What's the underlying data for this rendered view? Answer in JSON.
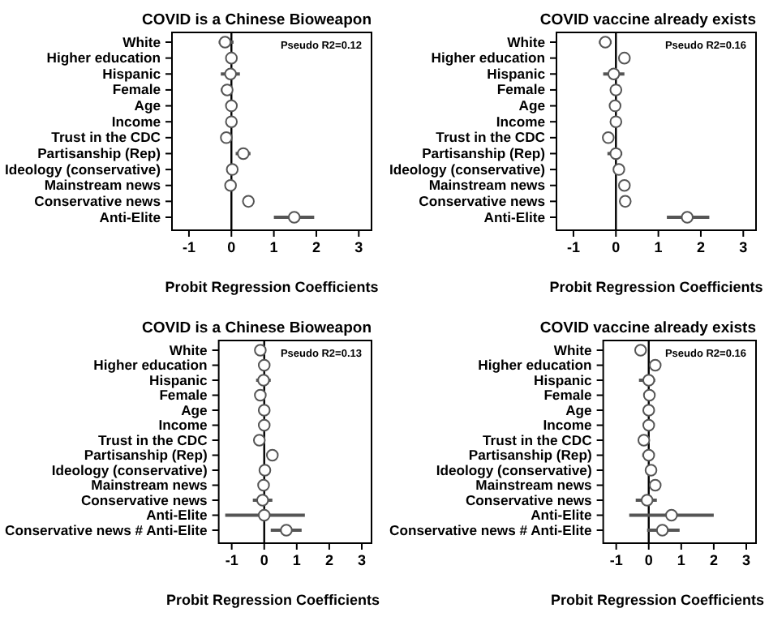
{
  "chart_data": [
    {
      "type": "scatter",
      "orientation": "horizontal",
      "title": "COVID is a Chinese Bioweapon",
      "xlabel": "Probit Regression Coefficients",
      "annotations": [
        "Pseudo R2=0.12"
      ],
      "marker": "circle",
      "color": "#555555",
      "xlim": [
        -1.4,
        3.3
      ],
      "xticks": [
        -1,
        0,
        1,
        2,
        3
      ],
      "ref_lines": [
        {
          "axis": "x",
          "value": 0,
          "color": "#000000"
        }
      ],
      "categories": [
        "White",
        "Higher education",
        "Hispanic",
        "Female",
        "Age",
        "Income",
        "Trust in the CDC",
        "Partisanship (Rep)",
        "Ideology (conservative)",
        "Mainstream news",
        "Conservative news",
        "Anti-Elite"
      ],
      "values": [
        -0.15,
        0.0,
        -0.02,
        -0.1,
        0.0,
        0.0,
        -0.12,
        0.28,
        0.02,
        -0.02,
        0.4,
        1.48
      ],
      "errors": [
        [
          -0.3,
          0.05
        ],
        [
          -0.1,
          0.1
        ],
        [
          -0.25,
          0.2
        ],
        [
          -0.25,
          0.0
        ],
        null,
        null,
        null,
        [
          0.1,
          0.45
        ],
        null,
        null,
        null,
        [
          1.0,
          1.95
        ]
      ]
    },
    {
      "type": "scatter",
      "orientation": "horizontal",
      "title": "COVID vaccine already exists",
      "xlabel": "Probit Regression Coefficients",
      "annotations": [
        "Pseudo R2=0.16"
      ],
      "marker": "circle",
      "color": "#555555",
      "xlim": [
        -1.4,
        3.3
      ],
      "xticks": [
        -1,
        0,
        1,
        2,
        3
      ],
      "ref_lines": [
        {
          "axis": "x",
          "value": 0,
          "color": "#000000"
        }
      ],
      "categories": [
        "White",
        "Higher education",
        "Hispanic",
        "Female",
        "Age",
        "Income",
        "Trust in the CDC",
        "Partisanship (Rep)",
        "Ideology (conservative)",
        "Mainstream news",
        "Conservative news",
        "Anti-Elite"
      ],
      "values": [
        -0.25,
        0.2,
        -0.05,
        0.0,
        -0.02,
        0.0,
        -0.18,
        0.0,
        0.07,
        0.2,
        0.22,
        1.68
      ],
      "errors": [
        [
          -0.4,
          -0.1
        ],
        [
          0.1,
          0.3
        ],
        [
          -0.3,
          0.2
        ],
        [
          -0.12,
          0.1
        ],
        null,
        null,
        null,
        [
          -0.2,
          0.15
        ],
        null,
        null,
        null,
        [
          1.2,
          2.2
        ]
      ]
    },
    {
      "type": "scatter",
      "orientation": "horizontal",
      "title": "COVID is a Chinese Bioweapon",
      "xlabel": "Probit Regression Coefficients",
      "annotations": [
        "Pseudo R2=0.13"
      ],
      "marker": "circle",
      "color": "#555555",
      "xlim": [
        -1.4,
        3.3
      ],
      "xticks": [
        -1,
        0,
        1,
        2,
        3
      ],
      "ref_lines": [
        {
          "axis": "x",
          "value": 0,
          "color": "#000000"
        }
      ],
      "categories": [
        "White",
        "Higher education",
        "Hispanic",
        "Female",
        "Age",
        "Income",
        "Trust in the CDC",
        "Partisanship (Rep)",
        "Ideology (conservative)",
        "Mainstream news",
        "Conservative news",
        "Anti-Elite",
        "Conservative news # Anti-Elite"
      ],
      "values": [
        -0.12,
        0.0,
        -0.02,
        -0.12,
        0.0,
        0.0,
        -0.15,
        0.25,
        0.02,
        -0.02,
        -0.05,
        0.0,
        0.68
      ],
      "errors": [
        null,
        null,
        [
          -0.25,
          0.2
        ],
        null,
        null,
        null,
        null,
        [
          0.1,
          0.4
        ],
        null,
        null,
        [
          -0.35,
          0.25
        ],
        [
          -1.2,
          1.25
        ],
        [
          0.2,
          1.15
        ]
      ]
    },
    {
      "type": "scatter",
      "orientation": "horizontal",
      "title": "COVID vaccine already exists",
      "xlabel": "Probit Regression Coefficients",
      "annotations": [
        "Pseudo R2=0.16"
      ],
      "marker": "circle",
      "color": "#555555",
      "xlim": [
        -1.4,
        3.3
      ],
      "xticks": [
        -1,
        0,
        1,
        2,
        3
      ],
      "ref_lines": [
        {
          "axis": "x",
          "value": 0,
          "color": "#000000"
        }
      ],
      "categories": [
        "White",
        "Higher education",
        "Hispanic",
        "Female",
        "Age",
        "Income",
        "Trust in the CDC",
        "Partisanship (Rep)",
        "Ideology (conservative)",
        "Mainstream news",
        "Conservative news",
        "Anti-Elite",
        "Conservative news # Anti-Elite"
      ],
      "values": [
        -0.25,
        0.2,
        0.0,
        0.02,
        0.0,
        0.0,
        -0.15,
        0.0,
        0.07,
        0.2,
        -0.05,
        0.7,
        0.42
      ],
      "errors": [
        [
          -0.4,
          -0.1
        ],
        null,
        [
          -0.3,
          0.2
        ],
        null,
        null,
        null,
        null,
        [
          -0.2,
          0.15
        ],
        null,
        null,
        [
          -0.4,
          0.25
        ],
        [
          -0.6,
          2.0
        ],
        [
          -0.05,
          0.95
        ]
      ]
    }
  ]
}
